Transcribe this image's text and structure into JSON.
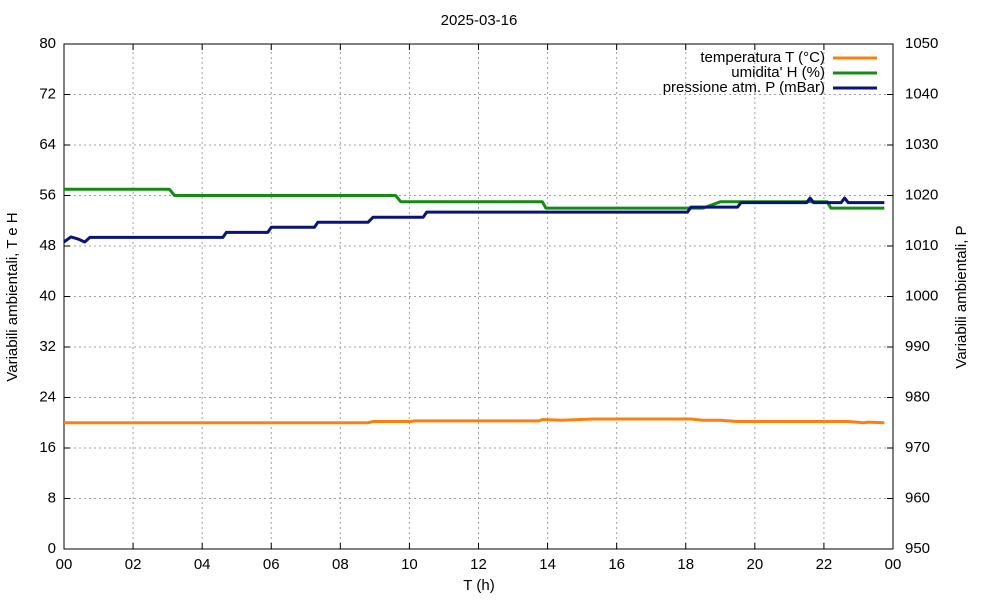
{
  "chart_data": {
    "type": "line",
    "title": "2025-03-16",
    "x_label": "T (h)",
    "y_label": "Variabili ambientali, T e H",
    "y2_label": "Variabili ambientali, P",
    "x": [
      0,
      0.2,
      0.4,
      0.6,
      0.75,
      3.05,
      3.2,
      4.6,
      4.7,
      5.9,
      6.0,
      7.25,
      7.35,
      8.8,
      8.95,
      9.1,
      9.6,
      9.75,
      10.05,
      10.15,
      10.4,
      10.5,
      13.75,
      13.85,
      13.95,
      14.4,
      15.3,
      18.05,
      18.15,
      18.5,
      19.0,
      19.5,
      19.6,
      21.5,
      21.6,
      21.7,
      22.1,
      22.2,
      22.5,
      22.6,
      22.7,
      23.15,
      23.3,
      23.75
    ],
    "series": [
      {
        "name": "temperatura T (°C)",
        "color": "#ff7f0e",
        "values": [
          20,
          20,
          20,
          20,
          20,
          20,
          20,
          20,
          20,
          20,
          20,
          20,
          20,
          20,
          20.2,
          20.2,
          20.2,
          20.2,
          20.2,
          20.3,
          20.3,
          20.3,
          20.3,
          20.5,
          20.5,
          20.4,
          20.6,
          20.6,
          20.6,
          20.4,
          20.4,
          20.2,
          20.2,
          20.2,
          20.2,
          20.2,
          20.2,
          20.2,
          20.2,
          20.2,
          20.2,
          20.0,
          20.1,
          20.0
        ]
      },
      {
        "name": "umidita' H (%)",
        "color": "#138c13",
        "values": [
          57,
          57,
          57,
          57,
          57,
          57,
          56,
          56,
          56,
          56,
          56,
          56,
          56,
          56,
          56,
          56,
          56,
          55,
          55,
          55,
          55,
          55,
          55,
          55,
          54,
          54,
          54,
          54,
          54,
          54,
          55,
          55,
          55,
          55,
          55,
          55,
          55,
          54,
          54,
          54,
          54,
          54,
          54,
          54
        ]
      },
      {
        "name": "pressione atm. P (mBar)",
        "color": "#0a1478",
        "axis": "y2",
        "values": [
          1010.8,
          1011.8,
          1011.4,
          1010.8,
          1011.7,
          1011.7,
          1011.7,
          1011.7,
          1012.7,
          1012.7,
          1013.7,
          1013.7,
          1014.7,
          1014.7,
          1015.7,
          1015.7,
          1015.7,
          1015.7,
          1015.7,
          1015.7,
          1015.7,
          1016.7,
          1016.7,
          1016.7,
          1016.7,
          1016.7,
          1016.7,
          1016.7,
          1017.7,
          1017.7,
          1017.7,
          1017.7,
          1018.6,
          1018.6,
          1019.5,
          1018.6,
          1018.6,
          1018.6,
          1018.6,
          1019.5,
          1018.6,
          1018.6,
          1018.6,
          1018.6
        ]
      }
    ],
    "xlim": [
      0,
      24
    ],
    "xticks": [
      {
        "value": 0,
        "label": "00"
      },
      {
        "value": 2,
        "label": "02"
      },
      {
        "value": 4,
        "label": "04"
      },
      {
        "value": 6,
        "label": "06"
      },
      {
        "value": 8,
        "label": "08"
      },
      10,
      12,
      14,
      16,
      18,
      20,
      22,
      {
        "value": 24,
        "label": "00"
      }
    ],
    "ylim": [
      0,
      80
    ],
    "yticks": [
      0,
      8,
      16,
      24,
      32,
      40,
      48,
      56,
      64,
      72,
      80
    ],
    "y2lim": [
      950,
      1050
    ],
    "y2ticks": [
      950,
      960,
      970,
      980,
      990,
      1000,
      1010,
      1020,
      1030,
      1040,
      1050
    ],
    "grid": true,
    "legend": "top-right"
  }
}
